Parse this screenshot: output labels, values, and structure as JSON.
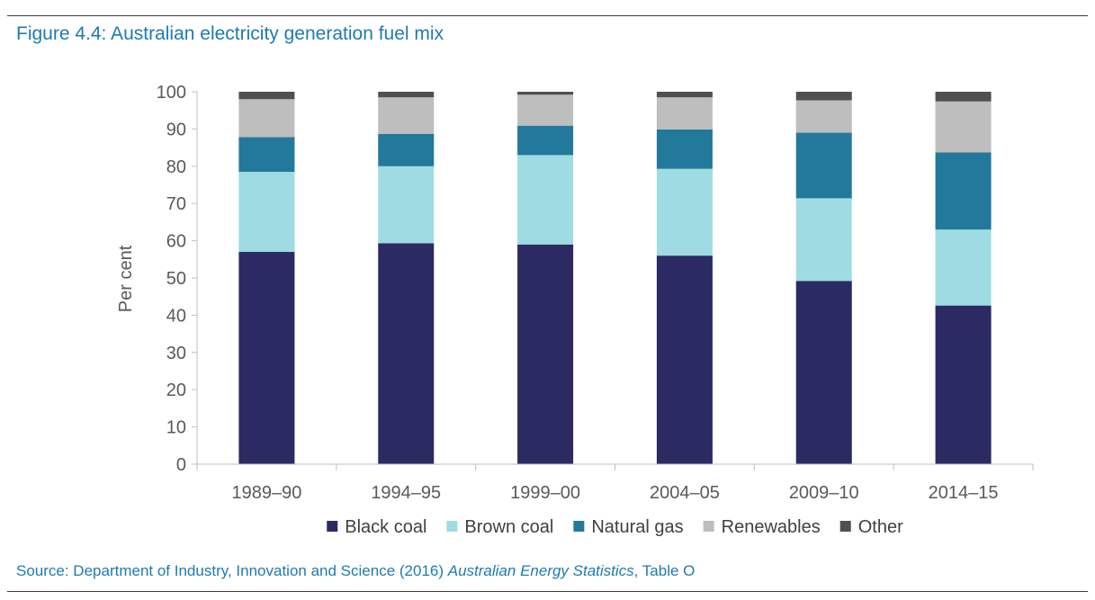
{
  "figure_title": "Figure 4.4: Australian electricity generation fuel mix",
  "source": {
    "prefix": "Source: Department of Industry, Innovation and Science (2016) ",
    "publication": "Australian Energy Statistics",
    "suffix": ", Table O"
  },
  "chart_data": {
    "type": "bar",
    "stacked": true,
    "title": "Figure 4.4: Australian electricity generation fuel mix",
    "xlabel": "",
    "ylabel": "Per cent",
    "ylim": [
      0,
      100
    ],
    "yticks": [
      0,
      10,
      20,
      30,
      40,
      50,
      60,
      70,
      80,
      90,
      100
    ],
    "categories": [
      "1989–90",
      "1994–95",
      "1999–00",
      "2004–05",
      "2009–10",
      "2014–15"
    ],
    "legend_position": "bottom",
    "series": [
      {
        "name": "Black coal",
        "color": "#2b2a63",
        "values": [
          57,
          59.3,
          59,
          56,
          49.2,
          42.6
        ]
      },
      {
        "name": "Brown coal",
        "color": "#9fdbe2",
        "values": [
          21.5,
          20.7,
          24,
          23.3,
          22.2,
          20.4
        ]
      },
      {
        "name": "Natural gas",
        "color": "#22799b",
        "values": [
          9.3,
          8.7,
          7.9,
          10.6,
          17.6,
          20.7
        ]
      },
      {
        "name": "Renewables",
        "color": "#bebebe",
        "values": [
          10.2,
          9.8,
          8.3,
          8.6,
          8.7,
          13.7
        ]
      },
      {
        "name": "Other",
        "color": "#505050",
        "values": [
          2,
          1.5,
          0.8,
          1.5,
          2.3,
          2.6
        ]
      }
    ]
  }
}
